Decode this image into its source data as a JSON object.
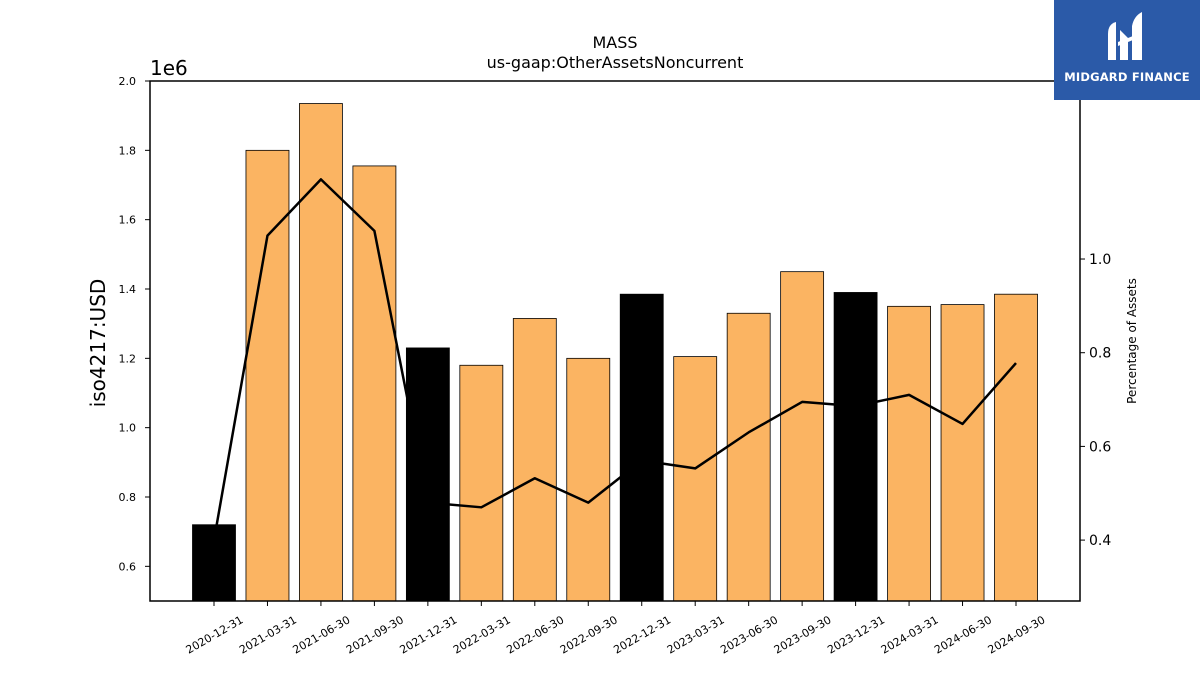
{
  "chart_data": {
    "type": "bar",
    "title": "MASS",
    "subtitle": "us-gaap:OtherAssetsNoncurrent",
    "ylabel": "iso4217:USD",
    "y_offset_label": "1e6",
    "y2label": "Percentage of Assets",
    "ylim": [
      0.5,
      2.0
    ],
    "y2lim": [
      0.27,
      1.38
    ],
    "y_ticks": [
      "0.6",
      "0.8",
      "1.0",
      "1.2",
      "1.4",
      "1.6",
      "1.8",
      "2.0"
    ],
    "y2_ticks": [
      "0.4",
      "0.6",
      "0.8",
      "1.0"
    ],
    "categories": [
      "2020-12-31",
      "2021-03-31",
      "2021-06-30",
      "2021-09-30",
      "2021-12-31",
      "2022-03-31",
      "2022-06-30",
      "2022-09-30",
      "2022-12-31",
      "2023-03-31",
      "2023-06-30",
      "2023-09-30",
      "2023-12-31",
      "2024-03-31",
      "2024-06-30",
      "2024-09-30"
    ],
    "series": [
      {
        "type": "bar",
        "values": [
          0.72,
          1.8,
          1.935,
          1.755,
          1.23,
          1.18,
          1.315,
          1.2,
          1.385,
          1.205,
          1.33,
          1.45,
          1.39,
          1.35,
          1.355,
          1.385
        ],
        "colors": [
          "#000000",
          "#fbb462",
          "#fbb462",
          "#fbb462",
          "#000000",
          "#fbb462",
          "#fbb462",
          "#fbb462",
          "#000000",
          "#fbb462",
          "#fbb462",
          "#fbb462",
          "#000000",
          "#fbb462",
          "#fbb462",
          "#fbb462"
        ]
      },
      {
        "type": "line",
        "axis": "right",
        "color": "#000000",
        "values": [
          0.4,
          1.05,
          1.17,
          1.06,
          0.48,
          0.47,
          0.532,
          0.48,
          0.57,
          0.553,
          0.63,
          0.695,
          0.686,
          0.71,
          0.648,
          0.778
        ]
      }
    ],
    "grid": false,
    "legend": "none"
  },
  "logo": {
    "text": "MIDGARD FINANCE",
    "icon": "midgard-logo-icon",
    "color": "#2b5aa8"
  }
}
